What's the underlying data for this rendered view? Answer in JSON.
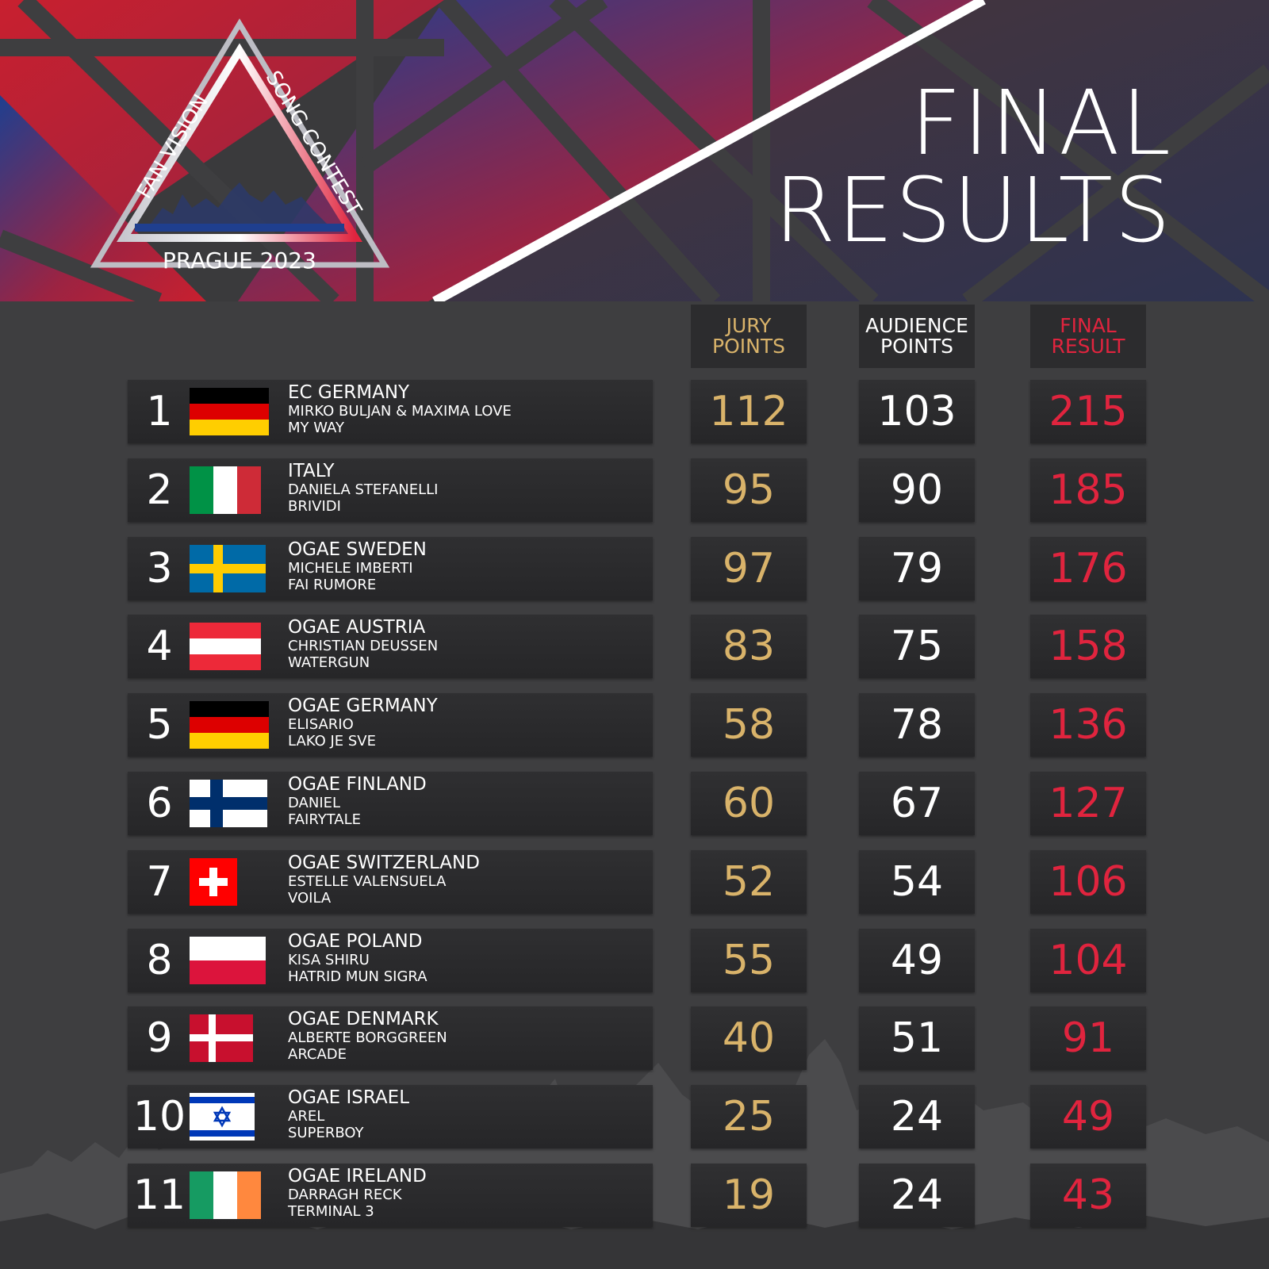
{
  "logo": {
    "left_text": "FAN VISION",
    "right_text": "SONG CONTEST",
    "bottom_text": "PRAGUE 2023"
  },
  "title": {
    "line1": "FINAL",
    "line2": "RESULTS"
  },
  "columns": {
    "jury": [
      "JURY",
      "POINTS"
    ],
    "audience": [
      "AUDIENCE",
      "POINTS"
    ],
    "final": [
      "FINAL",
      "RESULT"
    ]
  },
  "colors": {
    "jury": "#d9b36a",
    "audience": "#ffffff",
    "final": "#e0243e",
    "header_red": "#c8202f",
    "header_blue": "#1f3f8f"
  },
  "rows": [
    {
      "rank": "1",
      "flag": "germany",
      "country": "EC GERMANY",
      "artist": "MIRKO BULJAN & MAXIMA LOVE",
      "song": "MY WAY",
      "jury": "112",
      "audience": "103",
      "final": "215"
    },
    {
      "rank": "2",
      "flag": "italy",
      "country": "ITALY",
      "artist": "DANIELA STEFANELLI",
      "song": "BRIVIDI",
      "jury": "95",
      "audience": "90",
      "final": "185"
    },
    {
      "rank": "3",
      "flag": "sweden",
      "country": "OGAE SWEDEN",
      "artist": "MICHELE IMBERTI",
      "song": "FAI RUMORE",
      "jury": "97",
      "audience": "79",
      "final": "176"
    },
    {
      "rank": "4",
      "flag": "austria",
      "country": "OGAE AUSTRIA",
      "artist": "CHRISTIAN DEUSSEN",
      "song": "WATERGUN",
      "jury": "83",
      "audience": "75",
      "final": "158"
    },
    {
      "rank": "5",
      "flag": "germany",
      "country": "OGAE GERMANY",
      "artist": "ELISARIO",
      "song": "LAKO JE SVE",
      "jury": "58",
      "audience": "78",
      "final": "136"
    },
    {
      "rank": "6",
      "flag": "finland",
      "country": "OGAE FINLAND",
      "artist": "DANIEL",
      "song": "FAIRYTALE",
      "jury": "60",
      "audience": "67",
      "final": "127"
    },
    {
      "rank": "7",
      "flag": "switzerland",
      "country": "OGAE SWITZERLAND",
      "artist": "ESTELLE VALENSUELA",
      "song": "VOILA",
      "jury": "52",
      "audience": "54",
      "final": "106"
    },
    {
      "rank": "8",
      "flag": "poland",
      "country": "OGAE POLAND",
      "artist": "KISA SHIRU",
      "song": "HATRID MUN SIGRA",
      "jury": "55",
      "audience": "49",
      "final": "104"
    },
    {
      "rank": "9",
      "flag": "denmark",
      "country": "OGAE DENMARK",
      "artist": "ALBERTE BORGGREEN",
      "song": "ARCADE",
      "jury": "40",
      "audience": "51",
      "final": "91"
    },
    {
      "rank": "10",
      "flag": "israel",
      "country": "OGAE ISRAEL",
      "artist": "AREL",
      "song": "SUPERBOY",
      "jury": "25",
      "audience": "24",
      "final": "49"
    },
    {
      "rank": "11",
      "flag": "ireland",
      "country": "OGAE IRELAND",
      "artist": "DARRAGH RECK",
      "song": "TERMINAL 3",
      "jury": "19",
      "audience": "24",
      "final": "43"
    }
  ]
}
